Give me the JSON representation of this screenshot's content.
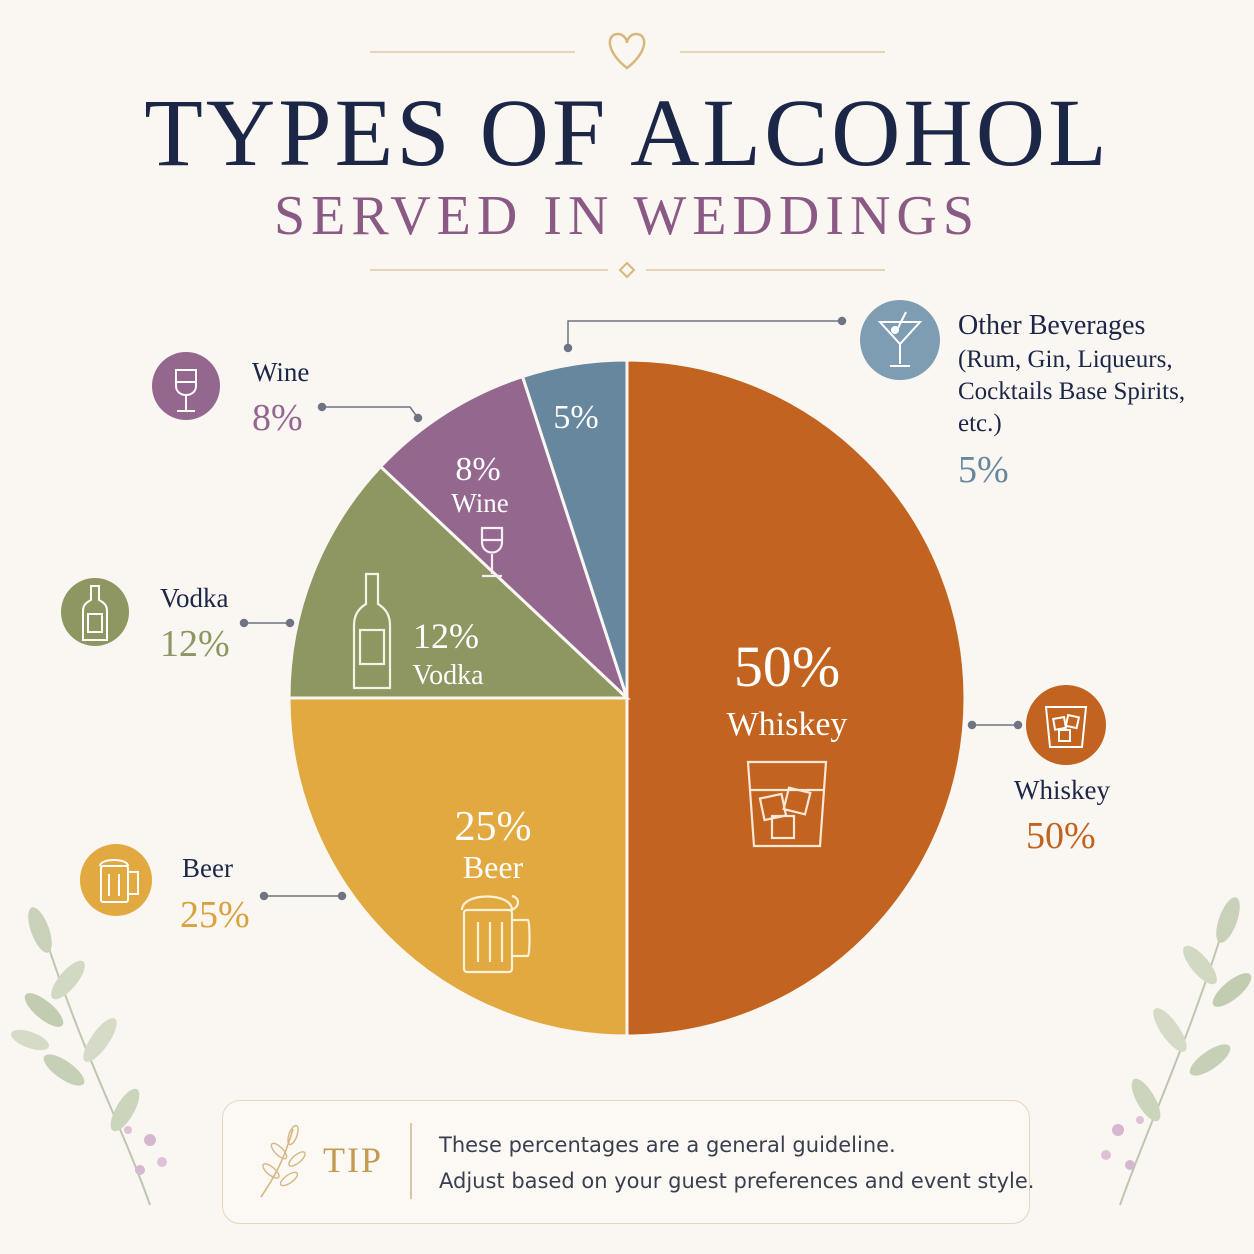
{
  "header": {
    "title": "TYPES OF ALCOHOL",
    "subtitle": "SERVED IN WEDDINGS"
  },
  "chart_data": {
    "type": "pie",
    "slices": [
      {
        "name": "Whiskey",
        "value": 50,
        "color": "#c2631f",
        "inside_pct": "50%",
        "inside_name": "Whiskey",
        "icon": "whiskey-glass-icon",
        "callout_name": "Whiskey",
        "callout_pct": "50%"
      },
      {
        "name": "Beer",
        "value": 25,
        "color": "#e1a93f",
        "inside_pct": "25%",
        "inside_name": "Beer",
        "icon": "beer-mug-icon",
        "callout_name": "Beer",
        "callout_pct": "25%"
      },
      {
        "name": "Vodka",
        "value": 12,
        "color": "#8e9662",
        "inside_pct": "12%",
        "inside_name": "Vodka",
        "icon": "vodka-bottle-icon",
        "callout_name": "Vodka",
        "callout_pct": "12%"
      },
      {
        "name": "Wine",
        "value": 8,
        "color": "#94678f",
        "inside_pct": "8%",
        "inside_name": "Wine",
        "icon": "wine-glass-icon",
        "callout_name": "Wine",
        "callout_pct": "8%"
      },
      {
        "name": "Other Beverages",
        "value": 5,
        "color": "#67879f",
        "inside_pct": "5%",
        "icon": "cocktail-glass-icon",
        "callout_name": "Other Beverages",
        "callout_detail": [
          "(Rum, Gin, Liqueurs,",
          "Cocktails Base Spirits,",
          "etc.)"
        ],
        "callout_pct": "5%"
      }
    ]
  },
  "tip": {
    "label": "TIP",
    "line1": "These percentages are a general guideline.",
    "line2": "Adjust based on your guest preferences and event style."
  }
}
